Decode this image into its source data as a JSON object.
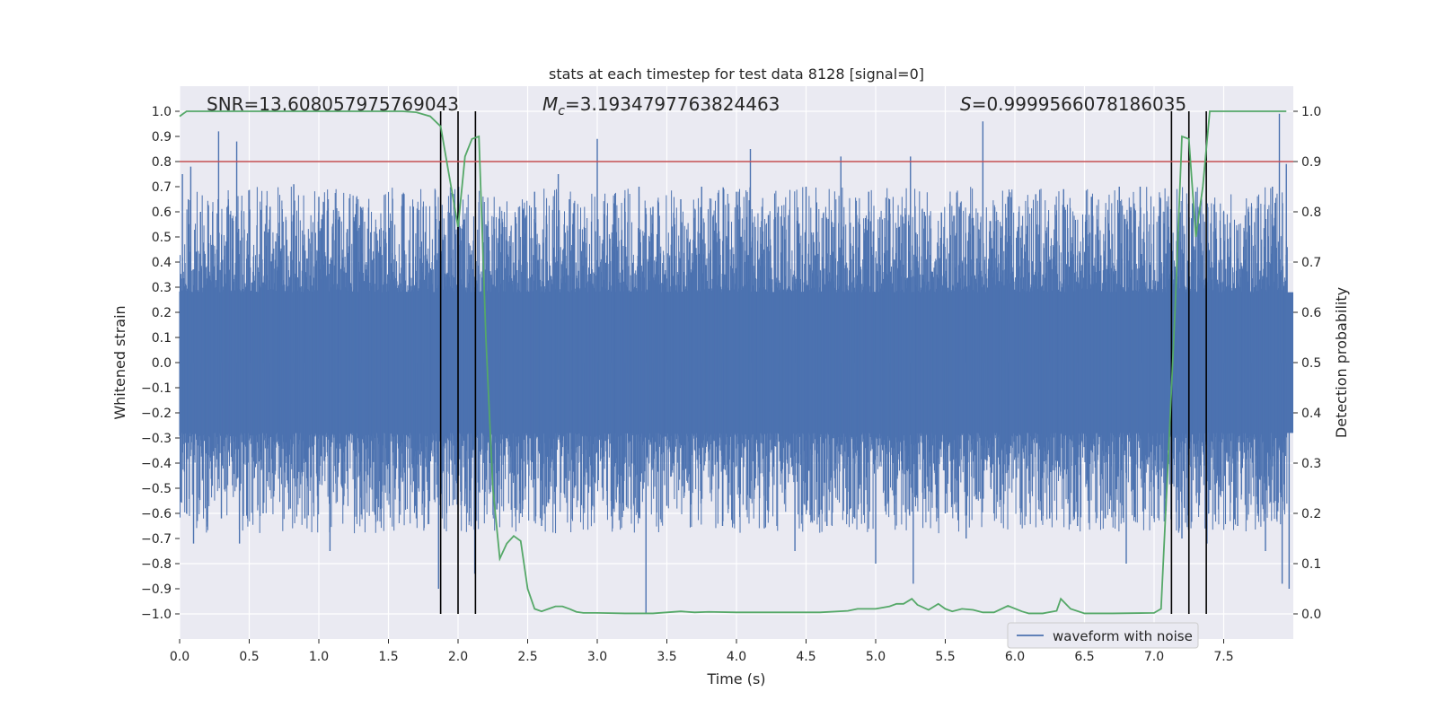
{
  "chart_data": {
    "type": "line",
    "title": "stats at each timestep for test data 8128 [signal=0]",
    "xlabel": "Time (s)",
    "ylabel": "Whitened strain",
    "y2label": "Detection probability",
    "xlim": [
      0,
      8
    ],
    "ylim": [
      -1.1,
      1.1
    ],
    "y2lim": [
      -0.05,
      1.05
    ],
    "x_ticks": [
      0.0,
      0.5,
      1.0,
      1.5,
      2.0,
      2.5,
      3.0,
      3.5,
      4.0,
      4.5,
      5.0,
      5.5,
      6.0,
      6.5,
      7.0,
      7.5
    ],
    "x_tick_labels": [
      "0.0",
      "0.5",
      "1.0",
      "1.5",
      "2.0",
      "2.5",
      "3.0",
      "3.5",
      "4.0",
      "4.5",
      "5.0",
      "5.5",
      "6.0",
      "6.5",
      "7.0",
      "7.5"
    ],
    "y_ticks": [
      1.0,
      0.9,
      0.8,
      0.7,
      0.6,
      0.5,
      0.4,
      0.3,
      0.2,
      0.1,
      0.0,
      -0.1,
      -0.2,
      -0.3,
      -0.4,
      -0.5,
      -0.6,
      -0.7,
      -0.8,
      -0.9,
      -1.0
    ],
    "y_tick_labels": [
      "1.0",
      "0.9",
      "0.8",
      "0.7",
      "0.6",
      "0.5",
      "0.4",
      "0.3",
      "0.2",
      "0.1",
      "0.0",
      "−0.1",
      "−0.2",
      "−0.3",
      "−0.4",
      "−0.5",
      "−0.6",
      "−0.7",
      "−0.8",
      "−0.9",
      "−1.0"
    ],
    "y2_ticks": [
      1.0,
      0.9,
      0.8,
      0.7,
      0.6,
      0.5,
      0.4,
      0.3,
      0.2,
      0.1,
      0.0
    ],
    "y2_tick_labels": [
      "1.0",
      "0.9",
      "0.8",
      "0.7",
      "0.6",
      "0.5",
      "0.4",
      "0.3",
      "0.2",
      "0.1",
      "0.0"
    ],
    "annotations": {
      "snr": "SNR=13.608057975769043",
      "mc_symbol": "M",
      "mc_sub": "c",
      "mc_value": "=3.1934797763824463",
      "s_symbol": "S",
      "s_value": "=0.9999566078186035"
    },
    "threshold": {
      "value": 0.9,
      "axis": "y2",
      "color": "#c44e52"
    },
    "vertical_lines": [
      1.875,
      2.0,
      2.125,
      7.125,
      7.25,
      7.375
    ],
    "series": [
      {
        "name": "waveform with noise",
        "axis": "y",
        "color": "#4c72b0",
        "core_envelope": 0.28,
        "peaks": [
          [
            0.02,
            0.75
          ],
          [
            0.05,
            -0.6
          ],
          [
            0.08,
            0.78
          ],
          [
            0.1,
            -0.72
          ],
          [
            0.15,
            0.6
          ],
          [
            0.2,
            -0.55
          ],
          [
            0.28,
            0.92
          ],
          [
            0.3,
            -0.62
          ],
          [
            0.35,
            0.65
          ],
          [
            0.41,
            0.88
          ],
          [
            0.43,
            -0.72
          ],
          [
            0.5,
            0.6
          ],
          [
            0.6,
            -0.6
          ],
          [
            0.65,
            0.62
          ],
          [
            0.82,
            0.71
          ],
          [
            0.9,
            -0.62
          ],
          [
            1.0,
            0.66
          ],
          [
            1.08,
            -0.75
          ],
          [
            1.15,
            0.58
          ],
          [
            1.3,
            0.62
          ],
          [
            1.45,
            -0.58
          ],
          [
            1.6,
            0.67
          ],
          [
            1.7,
            -0.62
          ],
          [
            1.75,
            0.62
          ],
          [
            1.86,
            -0.9
          ],
          [
            1.9,
            0.5
          ],
          [
            2.0,
            0.6
          ],
          [
            2.05,
            -0.52
          ],
          [
            2.12,
            -0.84
          ],
          [
            2.2,
            0.55
          ],
          [
            2.3,
            0.62
          ],
          [
            2.45,
            -0.6
          ],
          [
            2.55,
            0.68
          ],
          [
            2.6,
            -0.65
          ],
          [
            2.72,
            0.75
          ],
          [
            2.8,
            0.65
          ],
          [
            2.9,
            -0.58
          ],
          [
            3.0,
            0.89
          ],
          [
            3.1,
            -0.55
          ],
          [
            3.2,
            0.6
          ],
          [
            3.3,
            0.7
          ],
          [
            3.35,
            -1.0
          ],
          [
            3.4,
            0.62
          ],
          [
            3.5,
            -0.57
          ],
          [
            3.6,
            0.65
          ],
          [
            3.75,
            0.7
          ],
          [
            3.9,
            -0.65
          ],
          [
            4.0,
            0.68
          ],
          [
            4.1,
            0.85
          ],
          [
            4.2,
            -0.66
          ],
          [
            4.3,
            0.62
          ],
          [
            4.42,
            -0.75
          ],
          [
            4.5,
            0.7
          ],
          [
            4.65,
            -0.65
          ],
          [
            4.75,
            0.82
          ],
          [
            4.85,
            -0.62
          ],
          [
            4.95,
            0.68
          ],
          [
            5.0,
            -0.8
          ],
          [
            5.1,
            0.65
          ],
          [
            5.25,
            0.82
          ],
          [
            5.27,
            -0.88
          ],
          [
            5.35,
            0.6
          ],
          [
            5.5,
            -0.6
          ],
          [
            5.6,
            0.62
          ],
          [
            5.65,
            -0.7
          ],
          [
            5.77,
            0.96
          ],
          [
            5.85,
            -0.6
          ],
          [
            5.95,
            0.66
          ],
          [
            6.05,
            -0.58
          ],
          [
            6.15,
            0.67
          ],
          [
            6.25,
            -0.62
          ],
          [
            6.35,
            0.69
          ],
          [
            6.45,
            -0.65
          ],
          [
            6.55,
            0.66
          ],
          [
            6.65,
            -0.62
          ],
          [
            6.75,
            0.7
          ],
          [
            6.8,
            -0.8
          ],
          [
            6.9,
            0.7
          ],
          [
            7.0,
            -0.62
          ],
          [
            7.1,
            0.62
          ],
          [
            7.2,
            -0.7
          ],
          [
            7.3,
            0.68
          ],
          [
            7.38,
            -0.72
          ],
          [
            7.5,
            0.6
          ],
          [
            7.6,
            -0.65
          ],
          [
            7.7,
            0.62
          ],
          [
            7.8,
            -0.75
          ],
          [
            7.85,
            0.7
          ],
          [
            7.9,
            0.99
          ],
          [
            7.92,
            -0.88
          ],
          [
            7.95,
            0.79
          ],
          [
            7.97,
            -0.9
          ]
        ]
      },
      {
        "name": "detection probability",
        "axis": "y2",
        "color": "#55a868",
        "x": [
          0.0,
          0.05,
          0.1,
          0.5,
          1.0,
          1.5,
          1.6,
          1.7,
          1.8,
          1.875,
          1.95,
          2.0,
          2.05,
          2.1,
          2.15,
          2.2,
          2.25,
          2.3,
          2.35,
          2.4,
          2.45,
          2.5,
          2.55,
          2.6,
          2.65,
          2.7,
          2.75,
          2.8,
          2.85,
          2.9,
          3.0,
          3.2,
          3.4,
          3.6,
          3.7,
          3.8,
          4.0,
          4.2,
          4.6,
          4.8,
          4.87,
          5.0,
          5.1,
          5.15,
          5.2,
          5.26,
          5.3,
          5.38,
          5.45,
          5.5,
          5.55,
          5.62,
          5.7,
          5.77,
          5.85,
          5.95,
          6.05,
          6.1,
          6.2,
          6.3,
          6.33,
          6.4,
          6.5,
          6.7,
          7.0,
          7.05,
          7.1,
          7.15,
          7.2,
          7.25,
          7.3,
          7.35,
          7.4,
          7.45,
          7.5,
          7.6,
          7.7,
          7.8,
          7.95
        ],
        "y": [
          0.99,
          1.0,
          1.0,
          1.0,
          1.0,
          1.0,
          1.0,
          0.998,
          0.99,
          0.97,
          0.85,
          0.77,
          0.91,
          0.945,
          0.95,
          0.55,
          0.25,
          0.11,
          0.14,
          0.155,
          0.145,
          0.05,
          0.01,
          0.005,
          0.01,
          0.015,
          0.015,
          0.01,
          0.004,
          0.002,
          0.002,
          0.001,
          0.001,
          0.005,
          0.003,
          0.004,
          0.003,
          0.003,
          0.003,
          0.006,
          0.01,
          0.01,
          0.015,
          0.02,
          0.02,
          0.03,
          0.018,
          0.008,
          0.02,
          0.01,
          0.005,
          0.01,
          0.008,
          0.003,
          0.003,
          0.016,
          0.005,
          0.001,
          0.001,
          0.006,
          0.03,
          0.01,
          0.001,
          0.001,
          0.002,
          0.01,
          0.3,
          0.6,
          0.95,
          0.945,
          0.75,
          0.85,
          1.0,
          1.0,
          1.0,
          1.0,
          1.0,
          1.0,
          1.0
        ]
      }
    ],
    "legend": {
      "position": "lower-right",
      "entries": [
        "waveform with noise"
      ]
    }
  }
}
